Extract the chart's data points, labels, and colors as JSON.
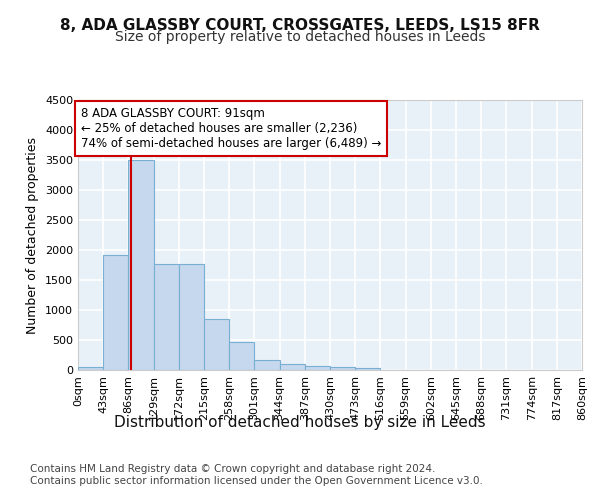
{
  "title1": "8, ADA GLASSBY COURT, CROSSGATES, LEEDS, LS15 8FR",
  "title2": "Size of property relative to detached houses in Leeds",
  "xlabel": "Distribution of detached houses by size in Leeds",
  "ylabel": "Number of detached properties",
  "footer1": "Contains HM Land Registry data © Crown copyright and database right 2024.",
  "footer2": "Contains public sector information licensed under the Open Government Licence v3.0.",
  "bin_edges": [
    0,
    43,
    86,
    129,
    172,
    215,
    258,
    301,
    344,
    387,
    430,
    473,
    516,
    559,
    602,
    645,
    688,
    731,
    774,
    817,
    860
  ],
  "bar_values": [
    50,
    1920,
    3500,
    1775,
    1775,
    845,
    460,
    160,
    100,
    70,
    55,
    30,
    0,
    0,
    0,
    0,
    0,
    0,
    0,
    0
  ],
  "bar_color": "#c5d8ee",
  "bar_edgecolor": "#7aafd4",
  "property_size": 91,
  "annotation_text": "8 ADA GLASSBY COURT: 91sqm\n← 25% of detached houses are smaller (2,236)\n74% of semi-detached houses are larger (6,489) →",
  "annotation_box_facecolor": "#ffffff",
  "annotation_box_edgecolor": "#cc0000",
  "vline_color": "#cc0000",
  "ylim": [
    0,
    4500
  ],
  "yticks": [
    0,
    500,
    1000,
    1500,
    2000,
    2500,
    3000,
    3500,
    4000,
    4500
  ],
  "background_color": "#ffffff",
  "plot_background": "#e8f0f8",
  "grid_color": "#ffffff",
  "title1_fontsize": 11,
  "title2_fontsize": 10,
  "xlabel_fontsize": 11,
  "ylabel_fontsize": 9,
  "tick_fontsize": 8,
  "footer_fontsize": 7.5,
  "ann_fontsize": 8.5
}
